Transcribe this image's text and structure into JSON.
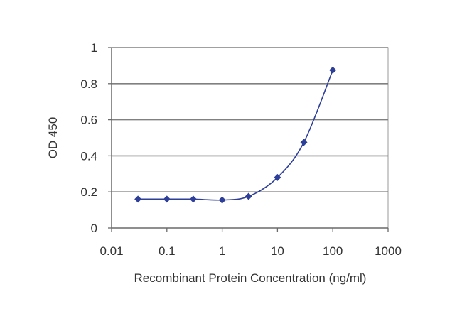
{
  "chart_data": {
    "type": "line",
    "title": "",
    "xlabel": "Recombinant Protein Concentration (ng/ml)",
    "ylabel": "OD 450",
    "x_scale": "log",
    "xlim": [
      0.01,
      1000
    ],
    "ylim": [
      0,
      1
    ],
    "x_ticks": [
      "0.01",
      "0.1",
      "1",
      "10",
      "100",
      "1000"
    ],
    "y_ticks": [
      "0",
      "0.2",
      "0.4",
      "0.6",
      "0.8",
      "1"
    ],
    "grid": "horizontal",
    "legend": "none",
    "colors": {
      "series": "#2e3f99",
      "grid": "#808080",
      "plot_border": "#9a9a9a",
      "axis": "#6a6a6a"
    },
    "series": [
      {
        "x": [
          0.03,
          0.1,
          0.3,
          1,
          3,
          10,
          30,
          100
        ],
        "y": [
          0.16,
          0.16,
          0.16,
          0.155,
          0.175,
          0.28,
          0.475,
          0.875
        ]
      }
    ]
  }
}
